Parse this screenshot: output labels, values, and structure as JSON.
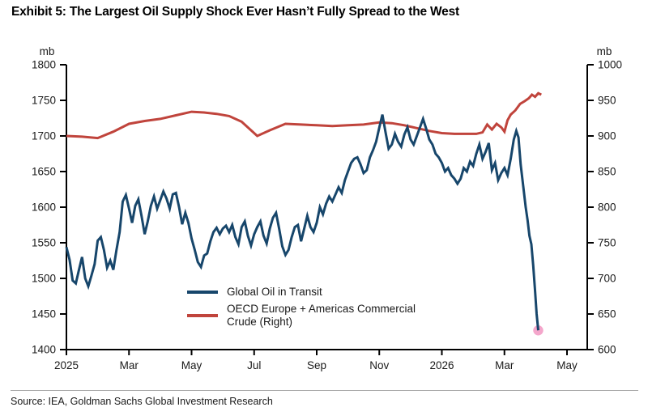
{
  "title": "Exhibit 5: The Largest Oil Supply Shock Ever Hasn’t Fully Spread to the West",
  "source": "Source: IEA, Goldman Sachs Global Investment Research",
  "legend": {
    "series1_label": "Global Oil in Transit",
    "series2_label_line1": "OECD Europe + Americas Commercial",
    "series2_label_line2": "Crude (Right)"
  },
  "colors": {
    "blue_line": "#17466b",
    "red_line": "#c0443c",
    "pink_marker": "#f4a6cb",
    "axis": "#000000",
    "tick_text": "#1a1a1a"
  },
  "chart_data": {
    "type": "line",
    "title": "Exhibit 5: The Largest Oil Supply Shock Ever Hasn’t Fully Spread to the West",
    "grid": false,
    "legend_position": "inside-bottom-center",
    "x_axis": {
      "labels": [
        "2025",
        "Mar",
        "May",
        "Jul",
        "Sep",
        "Nov",
        "2026",
        "Mar",
        "May"
      ],
      "label_months": [
        0,
        2,
        4,
        6,
        8,
        10,
        12,
        14,
        16
      ],
      "range_months": [
        0,
        16.65
      ]
    },
    "left_axis": {
      "unit": "mb",
      "ticks": [
        1400,
        1450,
        1500,
        1550,
        1600,
        1650,
        1700,
        1750,
        1800
      ],
      "range": [
        1400,
        1800
      ]
    },
    "right_axis": {
      "unit": "mb",
      "ticks": [
        600,
        650,
        700,
        750,
        800,
        850,
        900,
        950,
        1000
      ],
      "range": [
        600,
        1000
      ]
    },
    "series": [
      {
        "name": "OECD Europe + Americas Commercial Crude (Right)",
        "axis": "right",
        "color": "#c0443c",
        "points": [
          [
            0,
            900
          ],
          [
            0.5,
            899
          ],
          [
            1,
            897
          ],
          [
            1.5,
            906
          ],
          [
            2,
            917
          ],
          [
            2.5,
            921
          ],
          [
            3,
            924
          ],
          [
            3.5,
            929
          ],
          [
            4,
            934
          ],
          [
            4.4,
            933
          ],
          [
            4.8,
            931
          ],
          [
            5.2,
            928
          ],
          [
            5.6,
            920
          ],
          [
            6.1,
            900
          ],
          [
            6.5,
            908
          ],
          [
            7,
            917
          ],
          [
            7.5,
            916
          ],
          [
            8,
            915
          ],
          [
            8.5,
            914
          ],
          [
            9,
            915
          ],
          [
            9.5,
            916
          ],
          [
            10,
            919
          ],
          [
            10.4,
            918
          ],
          [
            10.8,
            915
          ],
          [
            11.2,
            911
          ],
          [
            11.6,
            907
          ],
          [
            12,
            904
          ],
          [
            12.4,
            903
          ],
          [
            12.8,
            903
          ],
          [
            13.1,
            903
          ],
          [
            13.3,
            905
          ],
          [
            13.45,
            916
          ],
          [
            13.6,
            909
          ],
          [
            13.75,
            917
          ],
          [
            13.9,
            912
          ],
          [
            14,
            906
          ],
          [
            14.1,
            922
          ],
          [
            14.2,
            930
          ],
          [
            14.35,
            936
          ],
          [
            14.5,
            945
          ],
          [
            14.65,
            949
          ],
          [
            14.78,
            953
          ],
          [
            14.88,
            958
          ],
          [
            14.98,
            955
          ],
          [
            15.08,
            960
          ],
          [
            15.18,
            958
          ]
        ]
      },
      {
        "name": "Global Oil in Transit",
        "axis": "left",
        "color": "#17466b",
        "points": [
          [
            0,
            1544
          ],
          [
            0.1,
            1526
          ],
          [
            0.2,
            1497
          ],
          [
            0.3,
            1493
          ],
          [
            0.4,
            1512
          ],
          [
            0.5,
            1530
          ],
          [
            0.6,
            1500
          ],
          [
            0.7,
            1489
          ],
          [
            0.8,
            1504
          ],
          [
            0.9,
            1520
          ],
          [
            1,
            1553
          ],
          [
            1.1,
            1558
          ],
          [
            1.2,
            1540
          ],
          [
            1.3,
            1515
          ],
          [
            1.4,
            1525
          ],
          [
            1.5,
            1512
          ],
          [
            1.6,
            1540
          ],
          [
            1.7,
            1565
          ],
          [
            1.8,
            1608
          ],
          [
            1.9,
            1617
          ],
          [
            2,
            1598
          ],
          [
            2.1,
            1578
          ],
          [
            2.2,
            1602
          ],
          [
            2.3,
            1611
          ],
          [
            2.4,
            1588
          ],
          [
            2.5,
            1562
          ],
          [
            2.6,
            1580
          ],
          [
            2.7,
            1602
          ],
          [
            2.8,
            1615
          ],
          [
            2.9,
            1598
          ],
          [
            3,
            1610
          ],
          [
            3.1,
            1622
          ],
          [
            3.2,
            1612
          ],
          [
            3.3,
            1598
          ],
          [
            3.4,
            1618
          ],
          [
            3.5,
            1620
          ],
          [
            3.6,
            1600
          ],
          [
            3.7,
            1576
          ],
          [
            3.8,
            1592
          ],
          [
            3.9,
            1578
          ],
          [
            4,
            1556
          ],
          [
            4.1,
            1540
          ],
          [
            4.2,
            1523
          ],
          [
            4.3,
            1516
          ],
          [
            4.4,
            1532
          ],
          [
            4.5,
            1535
          ],
          [
            4.6,
            1552
          ],
          [
            4.7,
            1565
          ],
          [
            4.8,
            1571
          ],
          [
            4.9,
            1562
          ],
          [
            5,
            1570
          ],
          [
            5.1,
            1574
          ],
          [
            5.2,
            1565
          ],
          [
            5.3,
            1575
          ],
          [
            5.4,
            1558
          ],
          [
            5.5,
            1548
          ],
          [
            5.6,
            1572
          ],
          [
            5.7,
            1580
          ],
          [
            5.8,
            1560
          ],
          [
            5.9,
            1546
          ],
          [
            6,
            1562
          ],
          [
            6.1,
            1572
          ],
          [
            6.2,
            1580
          ],
          [
            6.3,
            1560
          ],
          [
            6.4,
            1549
          ],
          [
            6.5,
            1570
          ],
          [
            6.6,
            1585
          ],
          [
            6.7,
            1592
          ],
          [
            6.8,
            1570
          ],
          [
            6.9,
            1545
          ],
          [
            7,
            1533
          ],
          [
            7.1,
            1540
          ],
          [
            7.2,
            1558
          ],
          [
            7.3,
            1572
          ],
          [
            7.4,
            1575
          ],
          [
            7.5,
            1552
          ],
          [
            7.6,
            1570
          ],
          [
            7.7,
            1588
          ],
          [
            7.8,
            1572
          ],
          [
            7.9,
            1565
          ],
          [
            8,
            1578
          ],
          [
            8.1,
            1600
          ],
          [
            8.2,
            1590
          ],
          [
            8.3,
            1605
          ],
          [
            8.4,
            1615
          ],
          [
            8.5,
            1608
          ],
          [
            8.6,
            1618
          ],
          [
            8.7,
            1628
          ],
          [
            8.8,
            1620
          ],
          [
            8.9,
            1638
          ],
          [
            9,
            1650
          ],
          [
            9.1,
            1662
          ],
          [
            9.2,
            1668
          ],
          [
            9.3,
            1670
          ],
          [
            9.4,
            1660
          ],
          [
            9.5,
            1648
          ],
          [
            9.6,
            1652
          ],
          [
            9.7,
            1670
          ],
          [
            9.8,
            1680
          ],
          [
            9.9,
            1692
          ],
          [
            10,
            1712
          ],
          [
            10.1,
            1730
          ],
          [
            10.2,
            1705
          ],
          [
            10.3,
            1682
          ],
          [
            10.4,
            1688
          ],
          [
            10.5,
            1703
          ],
          [
            10.6,
            1692
          ],
          [
            10.7,
            1685
          ],
          [
            10.8,
            1702
          ],
          [
            10.9,
            1712
          ],
          [
            11,
            1695
          ],
          [
            11.1,
            1688
          ],
          [
            11.2,
            1700
          ],
          [
            11.3,
            1712
          ],
          [
            11.4,
            1724
          ],
          [
            11.5,
            1710
          ],
          [
            11.6,
            1695
          ],
          [
            11.7,
            1688
          ],
          [
            11.8,
            1675
          ],
          [
            11.9,
            1670
          ],
          [
            12,
            1662
          ],
          [
            12.1,
            1650
          ],
          [
            12.2,
            1655
          ],
          [
            12.3,
            1645
          ],
          [
            12.4,
            1640
          ],
          [
            12.5,
            1633
          ],
          [
            12.6,
            1640
          ],
          [
            12.7,
            1655
          ],
          [
            12.8,
            1650
          ],
          [
            12.9,
            1664
          ],
          [
            13,
            1658
          ],
          [
            13.1,
            1675
          ],
          [
            13.2,
            1688
          ],
          [
            13.3,
            1668
          ],
          [
            13.4,
            1678
          ],
          [
            13.5,
            1690
          ],
          [
            13.6,
            1652
          ],
          [
            13.7,
            1662
          ],
          [
            13.8,
            1638
          ],
          [
            13.9,
            1648
          ],
          [
            14,
            1655
          ],
          [
            14.1,
            1645
          ],
          [
            14.2,
            1668
          ],
          [
            14.3,
            1695
          ],
          [
            14.38,
            1707
          ],
          [
            14.45,
            1698
          ],
          [
            14.52,
            1660
          ],
          [
            14.6,
            1630
          ],
          [
            14.68,
            1600
          ],
          [
            14.74,
            1582
          ],
          [
            14.8,
            1560
          ],
          [
            14.86,
            1548
          ],
          [
            14.92,
            1518
          ],
          [
            14.98,
            1482
          ],
          [
            15.03,
            1450
          ],
          [
            15.08,
            1427
          ]
        ],
        "end_marker": {
          "point": [
            15.08,
            1427
          ],
          "color": "#f4a6cb"
        }
      }
    ]
  }
}
